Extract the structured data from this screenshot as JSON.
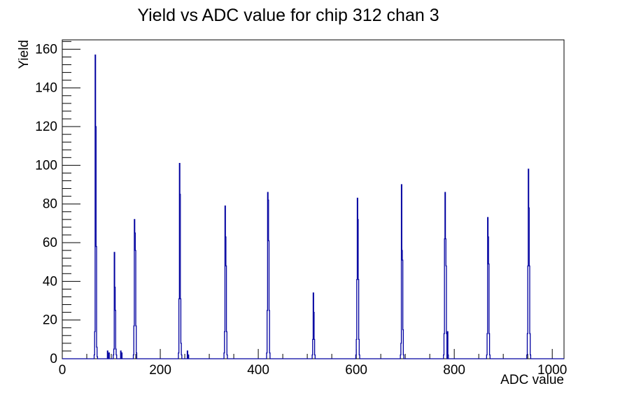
{
  "window": {
    "background_color": "#ffffff"
  },
  "chart_data": {
    "type": "bar",
    "subtype": "root-histogram-outline",
    "title": "Yield vs ADC value for chip 312 chan 3",
    "xlabel": "ADC value",
    "ylabel": "Yield",
    "xlim": [
      0,
      1024
    ],
    "ylim": [
      0,
      164.85
    ],
    "grid": false,
    "legend": "none",
    "x_major_ticks": [
      0,
      200,
      400,
      600,
      800,
      1000
    ],
    "x_minor_step": 50,
    "y_major_ticks": [
      0,
      20,
      40,
      60,
      80,
      100,
      120,
      140,
      160
    ],
    "y_minor_step": 4,
    "line_color": "#0000a0",
    "frame_color": "#000000",
    "text_color": "#000000",
    "bin_width_adc": 1,
    "peak_summary": [
      {
        "adc": 67,
        "yield": 157
      },
      {
        "adc": 106,
        "yield": 55
      },
      {
        "adc": 147,
        "yield": 72
      },
      {
        "adc": 239,
        "yield": 101
      },
      {
        "adc": 332,
        "yield": 79
      },
      {
        "adc": 419,
        "yield": 86
      },
      {
        "adc": 512,
        "yield": 34
      },
      {
        "adc": 602,
        "yield": 83
      },
      {
        "adc": 692,
        "yield": 90
      },
      {
        "adc": 781,
        "yield": 86
      },
      {
        "adc": 868,
        "yield": 73
      },
      {
        "adc": 951,
        "yield": 98
      }
    ],
    "bins": [
      [
        65,
        2
      ],
      [
        66,
        14
      ],
      [
        67,
        157
      ],
      [
        68,
        120
      ],
      [
        69,
        58
      ],
      [
        70,
        6
      ],
      [
        71,
        1
      ],
      [
        92,
        4
      ],
      [
        95,
        3
      ],
      [
        104,
        2
      ],
      [
        105,
        5
      ],
      [
        106,
        55
      ],
      [
        107,
        37
      ],
      [
        108,
        25
      ],
      [
        109,
        5
      ],
      [
        110,
        2
      ],
      [
        119,
        4
      ],
      [
        121,
        3
      ],
      [
        145,
        2
      ],
      [
        146,
        17
      ],
      [
        147,
        72
      ],
      [
        148,
        65
      ],
      [
        149,
        56
      ],
      [
        150,
        17
      ],
      [
        151,
        3
      ],
      [
        237,
        3
      ],
      [
        238,
        31
      ],
      [
        239,
        101
      ],
      [
        240,
        85
      ],
      [
        241,
        31
      ],
      [
        242,
        8
      ],
      [
        243,
        2
      ],
      [
        255,
        4
      ],
      [
        257,
        2
      ],
      [
        330,
        3
      ],
      [
        331,
        14
      ],
      [
        332,
        79
      ],
      [
        333,
        63
      ],
      [
        334,
        48
      ],
      [
        335,
        14
      ],
      [
        336,
        2
      ],
      [
        417,
        3
      ],
      [
        418,
        25
      ],
      [
        419,
        86
      ],
      [
        420,
        82
      ],
      [
        421,
        61
      ],
      [
        422,
        25
      ],
      [
        423,
        3
      ],
      [
        510,
        2
      ],
      [
        511,
        10
      ],
      [
        512,
        34
      ],
      [
        513,
        24
      ],
      [
        514,
        10
      ],
      [
        515,
        2
      ],
      [
        599,
        2
      ],
      [
        600,
        10
      ],
      [
        601,
        41
      ],
      [
        602,
        83
      ],
      [
        603,
        72
      ],
      [
        604,
        41
      ],
      [
        605,
        10
      ],
      [
        606,
        2
      ],
      [
        690,
        2
      ],
      [
        691,
        8
      ],
      [
        692,
        90
      ],
      [
        693,
        56
      ],
      [
        694,
        51
      ],
      [
        695,
        15
      ],
      [
        696,
        2
      ],
      [
        778,
        2
      ],
      [
        779,
        13
      ],
      [
        780,
        62
      ],
      [
        781,
        86
      ],
      [
        782,
        62
      ],
      [
        783,
        48
      ],
      [
        784,
        13
      ],
      [
        786,
        14
      ],
      [
        787,
        2
      ],
      [
        866,
        2
      ],
      [
        867,
        13
      ],
      [
        868,
        73
      ],
      [
        869,
        63
      ],
      [
        870,
        49
      ],
      [
        871,
        13
      ],
      [
        872,
        2
      ],
      [
        948,
        2
      ],
      [
        949,
        13
      ],
      [
        950,
        48
      ],
      [
        951,
        98
      ],
      [
        952,
        78
      ],
      [
        953,
        48
      ],
      [
        954,
        13
      ],
      [
        955,
        2
      ]
    ]
  }
}
